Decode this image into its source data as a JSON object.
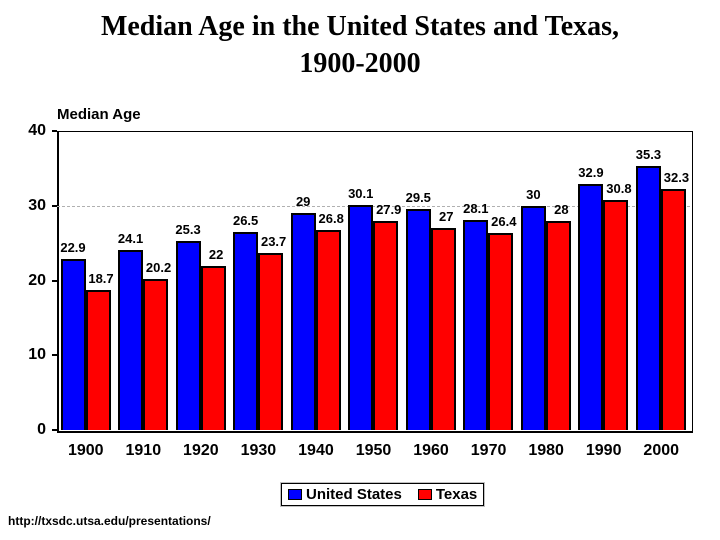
{
  "slide": {
    "title_line1": "Median Age in the United States and Texas,",
    "title_line2": "1900-2000",
    "footer_url": "http://txsdc.utsa.edu/presentations/"
  },
  "chart_data": {
    "type": "bar",
    "title": "Median Age",
    "categories": [
      "1900",
      "1910",
      "1920",
      "1930",
      "1940",
      "1950",
      "1960",
      "1970",
      "1980",
      "1990",
      "2000"
    ],
    "series": [
      {
        "name": "United States",
        "color": "#0000ff",
        "values": [
          22.9,
          24.1,
          25.3,
          26.5,
          29,
          30.1,
          29.5,
          28.1,
          30,
          32.9,
          35.3
        ]
      },
      {
        "name": "Texas",
        "color": "#ff0000",
        "values": [
          18.7,
          20.2,
          22,
          23.7,
          26.8,
          27.9,
          27,
          26.4,
          28,
          30.8,
          32.3
        ]
      }
    ],
    "xlabel": "",
    "ylabel": "Median Age",
    "ylim": [
      0,
      40
    ],
    "yticks": [
      0,
      10,
      20,
      30,
      40
    ],
    "gridlines": [
      30
    ],
    "grid": "single dashed line at 30 only",
    "legend_position": "bottom",
    "bar_labels_shown": true
  }
}
